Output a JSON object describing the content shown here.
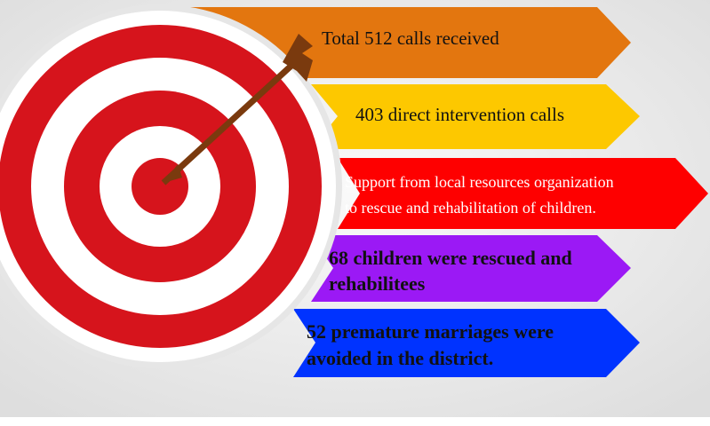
{
  "items": [
    {
      "lines": [
        "Total 512 calls received"
      ]
    },
    {
      "lines": [
        "403 direct intervention calls"
      ]
    },
    {
      "lines": [
        "Support from local resources organization",
        "to rescue and rehabilitation of children."
      ]
    },
    {
      "lines": [
        "68 children were rescued and",
        "rehabilitees"
      ]
    },
    {
      "lines": [
        "52 premature marriages were",
        "avoided in the district."
      ]
    }
  ]
}
